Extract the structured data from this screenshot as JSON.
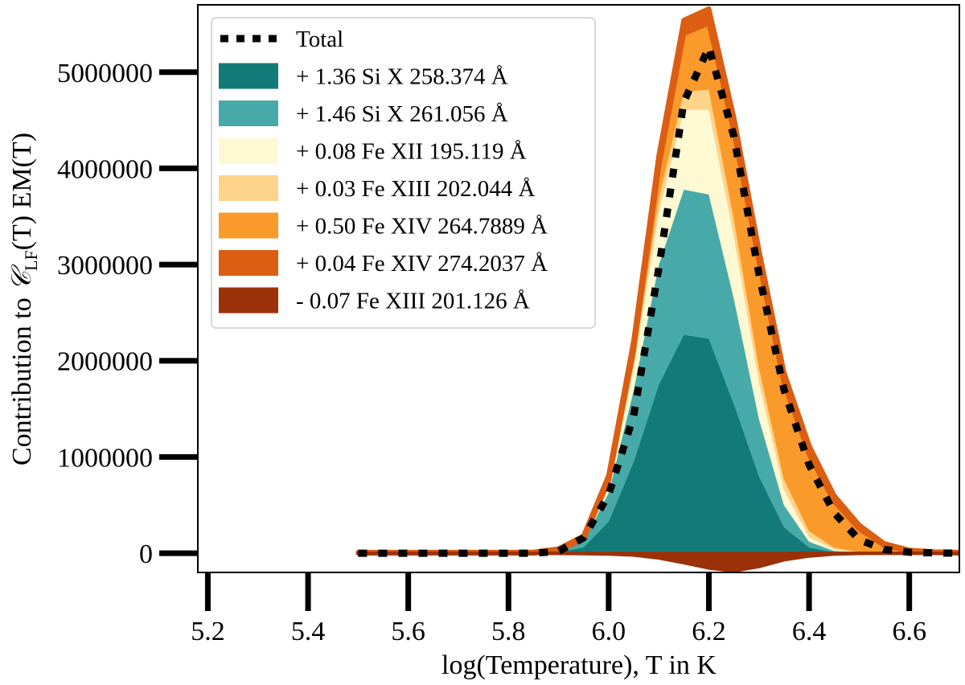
{
  "chart_data": {
    "type": "area",
    "xlabel": "log(Temperature), T in K",
    "ylabel_parts": {
      "prefix": "Contribution to ",
      "symbol": "𝒞",
      "subscript": "LF",
      "suffix": "(T) EM(T)"
    },
    "xlim": [
      5.18,
      6.7
    ],
    "ylim": [
      -200000,
      5700000
    ],
    "x_ticks": [
      "5.2",
      "5.4",
      "5.6",
      "5.8",
      "6.0",
      "6.2",
      "6.4",
      "6.6"
    ],
    "x_tick_values": [
      5.2,
      5.4,
      5.6,
      5.8,
      6.0,
      6.2,
      6.4,
      6.6
    ],
    "y_ticks": [
      "0",
      "1000000",
      "2000000",
      "3000000",
      "4000000",
      "5000000"
    ],
    "y_tick_values": [
      0,
      1000000,
      2000000,
      3000000,
      4000000,
      5000000
    ],
    "x": [
      5.5,
      5.55,
      5.6,
      5.65,
      5.7,
      5.75,
      5.8,
      5.85,
      5.9,
      5.95,
      6.0,
      6.05,
      6.1,
      6.15,
      6.2,
      6.25,
      6.3,
      6.35,
      6.4,
      6.45,
      6.5,
      6.55,
      6.6,
      6.65,
      6.7
    ],
    "positive_series": [
      {
        "name": "+ 1.36 Si X 258.374 Å",
        "color": "#137a77",
        "values": [
          0,
          0,
          0,
          0,
          0,
          0,
          0,
          0,
          10000,
          60000,
          330000,
          950000,
          1750000,
          2270000,
          2230000,
          1550000,
          800000,
          270000,
          60000,
          10000,
          2000,
          0,
          0,
          0,
          0
        ]
      },
      {
        "name": "+ 1.46 Si X 261.056 Å",
        "color": "#47aaa8",
        "values": [
          0,
          0,
          0,
          0,
          0,
          0,
          0,
          0,
          10000,
          60000,
          300000,
          750000,
          1250000,
          1510000,
          1500000,
          1100000,
          600000,
          230000,
          60000,
          15000,
          3000,
          0,
          0,
          0,
          0
        ]
      },
      {
        "name": "+ 0.08 Fe XII 195.119 Å",
        "color": "#fdf9d3",
        "values": [
          0,
          0,
          0,
          0,
          0,
          0,
          0,
          0,
          3000,
          15000,
          60000,
          230000,
          550000,
          830000,
          880000,
          650000,
          380000,
          160000,
          50000,
          15000,
          3000,
          0,
          0,
          0,
          0
        ]
      },
      {
        "name": "+ 0.03 Fe XIII 202.044 Å",
        "color": "#fed38a",
        "values": [
          0,
          0,
          0,
          0,
          0,
          0,
          0,
          0,
          1000,
          5000,
          20000,
          60000,
          140000,
          190000,
          210000,
          180000,
          150000,
          110000,
          60000,
          20000,
          5000,
          1000,
          0,
          0,
          0
        ]
      },
      {
        "name": "+ 0.50 Fe XIV 264.7889 Å",
        "color": "#f99a2b",
        "values": [
          0,
          0,
          0,
          0,
          0,
          0,
          0,
          0,
          2000,
          10000,
          40000,
          120000,
          320000,
          600000,
          690000,
          900000,
          1100000,
          1000000,
          800000,
          480000,
          240000,
          80000,
          20000,
          5000,
          0
        ]
      },
      {
        "name": "+ 0.04 Fe XIV 274.2037 Å",
        "color": "#db5e12",
        "values": [
          10000,
          10000,
          10000,
          10000,
          10000,
          10000,
          10000,
          12000,
          20000,
          30000,
          60000,
          100000,
          120000,
          140000,
          150000,
          150000,
          120000,
          110000,
          90000,
          60000,
          40000,
          20000,
          12000,
          10000,
          10000
        ]
      }
    ],
    "negative_series": {
      "name": "- 0.07 Fe XIII 201.126 Å",
      "color": "#9b3108",
      "values": [
        -3000,
        -3000,
        -3000,
        -3000,
        -3000,
        -3000,
        -3000,
        -3000,
        -4000,
        -6000,
        -10000,
        -20000,
        -50000,
        -100000,
        -155000,
        -185000,
        -140000,
        -70000,
        -30000,
        -10000,
        -4000,
        -3000,
        -3000,
        -3000,
        -3000
      ]
    },
    "total": {
      "name": "Total",
      "color": "#000000",
      "values": [
        0,
        0,
        0,
        0,
        0,
        0,
        0,
        0,
        20000,
        160000,
        610000,
        1430000,
        2960000,
        4690000,
        5260000,
        4330000,
        2900000,
        1700000,
        920000,
        420000,
        140000,
        40000,
        10000,
        3000,
        0
      ]
    },
    "legend_order": [
      "Total",
      "+ 1.36 Si X 258.374 Å",
      "+ 1.46 Si X 261.056 Å",
      "+ 0.08 Fe XII 195.119 Å",
      "+ 0.03 Fe XIII 202.044 Å",
      "+ 0.50 Fe XIV 264.7889 Å",
      "+ 0.04 Fe XIV 274.2037 Å",
      "- 0.07 Fe XIII 201.126 Å"
    ],
    "legend_position": "top-left"
  }
}
